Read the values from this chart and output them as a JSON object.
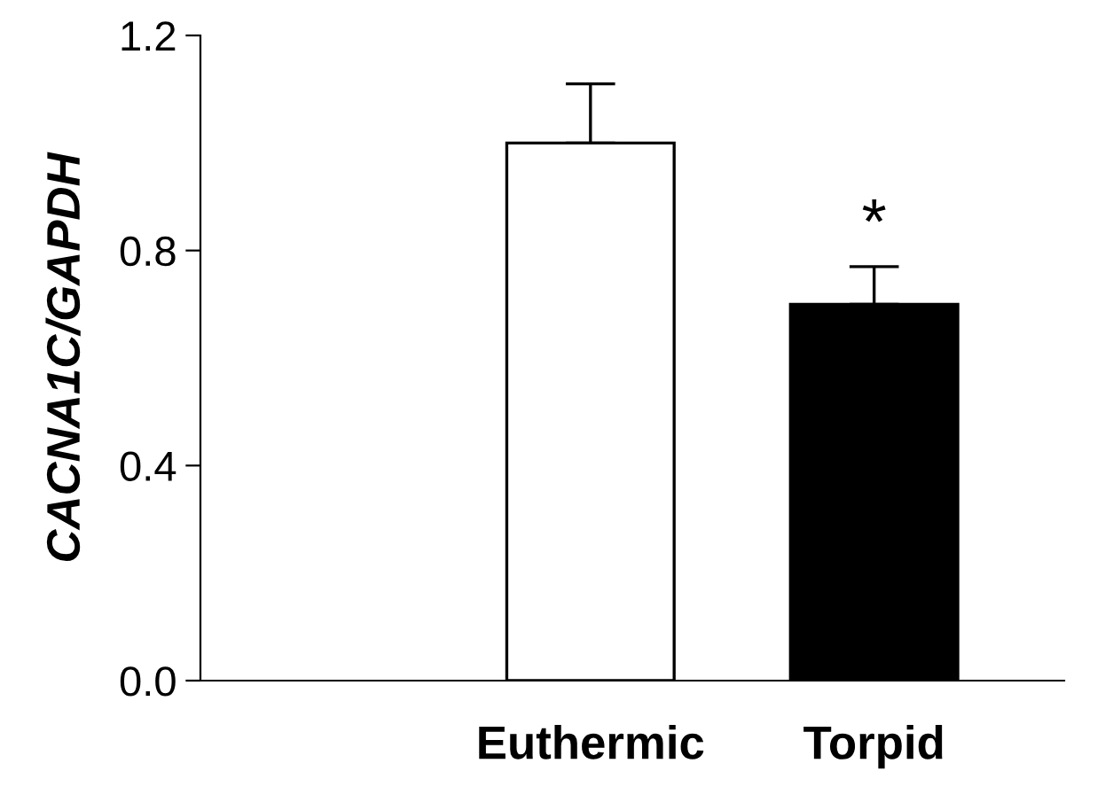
{
  "chart_data": {
    "type": "bar",
    "categories": [
      "Euthermic",
      "Torpid"
    ],
    "values": [
      1.0,
      0.7
    ],
    "colors": [
      "#ffffff",
      "#000000"
    ],
    "errors": [
      [
        1.0,
        1.11
      ],
      [
        0.7,
        0.77
      ]
    ],
    "ylabel": "CACNA1C/GAPDH",
    "ylim": [
      0.0,
      1.2
    ],
    "yticks": [
      {
        "value": 0.0,
        "label": "0.0"
      },
      {
        "value": 0.4,
        "label": "0.4"
      },
      {
        "value": 0.8,
        "label": "0.8"
      },
      {
        "value": 1.2,
        "label": "1.2"
      }
    ],
    "annotations": [
      "*"
    ],
    "grid": false,
    "legend": false
  }
}
